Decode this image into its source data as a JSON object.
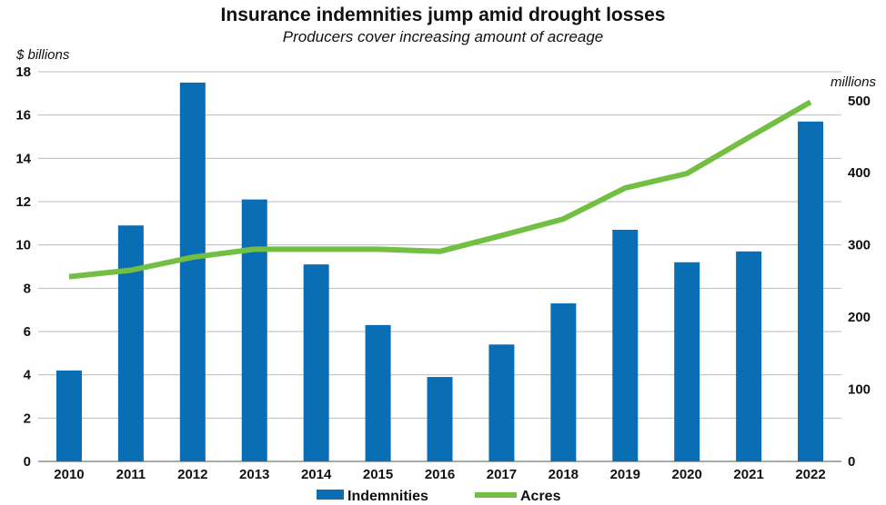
{
  "chart_data": {
    "type": "bar",
    "title": "Insurance indemnities jump amid drought losses",
    "subtitle": "Producers cover increasing amount of acreage",
    "categories": [
      "2010",
      "2011",
      "2012",
      "2013",
      "2014",
      "2015",
      "2016",
      "2017",
      "2018",
      "2019",
      "2020",
      "2021",
      "2022"
    ],
    "series": [
      {
        "name": "Indemnities",
        "type": "bar",
        "axis": "left",
        "color": "#0a6eb4",
        "values": [
          4.2,
          10.9,
          17.5,
          12.1,
          9.1,
          6.3,
          3.9,
          5.4,
          7.3,
          10.7,
          9.2,
          9.7,
          15.7
        ]
      },
      {
        "name": "Acres",
        "type": "line",
        "axis": "right",
        "color": "#72bf44",
        "values": [
          256,
          265,
          283,
          294,
          294,
          294,
          291,
          313,
          336,
          379,
          399,
          449,
          498
        ]
      }
    ],
    "y_left": {
      "label": "$ billions",
      "ylim": [
        0,
        18
      ],
      "ticks": [
        0,
        2,
        4,
        6,
        8,
        10,
        12,
        14,
        16,
        18
      ]
    },
    "y_right": {
      "label": "millions",
      "ylim": [
        0,
        540
      ],
      "ticks": [
        0,
        100,
        200,
        300,
        400,
        500
      ]
    },
    "grid": true,
    "legend": "bottom"
  }
}
